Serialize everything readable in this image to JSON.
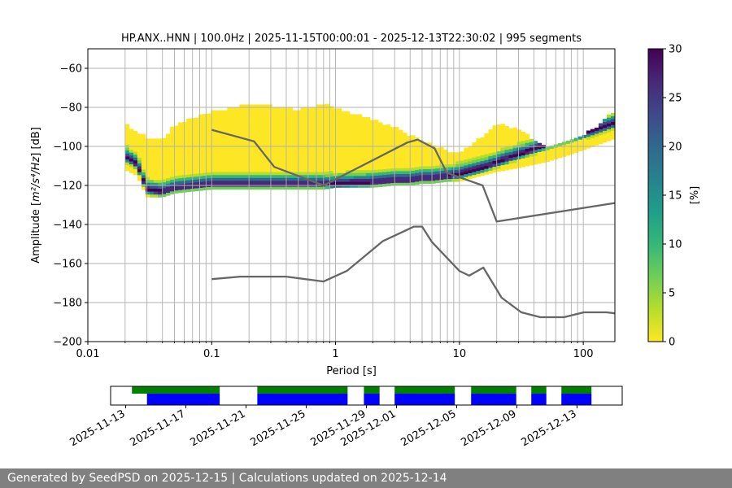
{
  "chart_data": {
    "type": "heatmap",
    "title": "HP.ANX..HNN | 100.0Hz | 2025-11-15T00:00:01 - 2025-12-13T22:30:02 | 995 segments",
    "xlabel": "Period [s]",
    "ylabel_main": "Amplitude [",
    "ylabel_units": "m²/s⁴/Hz",
    "ylabel_tail": "] [dB]",
    "x_scale": "log",
    "xlim": [
      0.01,
      180
    ],
    "ylim": [
      -200,
      -50
    ],
    "x_ticks": [
      {
        "value": 0.01,
        "label": "0.01"
      },
      {
        "value": 0.1,
        "label": "0.1"
      },
      {
        "value": 1,
        "label": "1"
      },
      {
        "value": 10,
        "label": "10"
      },
      {
        "value": 100,
        "label": "100"
      }
    ],
    "y_ticks": [
      {
        "value": -60,
        "label": "−60"
      },
      {
        "value": -80,
        "label": "−80"
      },
      {
        "value": -100,
        "label": "−100"
      },
      {
        "value": -120,
        "label": "−120"
      },
      {
        "value": -140,
        "label": "−140"
      },
      {
        "value": -160,
        "label": "−160"
      },
      {
        "value": -180,
        "label": "−180"
      },
      {
        "value": -200,
        "label": "−200"
      }
    ],
    "grid": true,
    "period_gridlines": [
      0.02,
      0.03,
      0.04,
      0.05,
      0.06,
      0.07,
      0.08,
      0.09,
      0.1,
      0.2,
      0.3,
      0.4,
      0.5,
      0.6,
      0.7,
      0.8,
      0.9,
      1,
      2,
      3,
      4,
      5,
      6,
      7,
      8,
      9,
      10,
      20,
      30,
      40,
      50,
      60,
      70,
      80,
      90,
      100
    ],
    "colorbar": {
      "label": "[%]",
      "range": [
        0,
        30
      ],
      "ticks": [
        {
          "value": 0,
          "label": "0"
        },
        {
          "value": 5,
          "label": "5"
        },
        {
          "value": 10,
          "label": "10"
        },
        {
          "value": 15,
          "label": "15"
        },
        {
          "value": 20,
          "label": "20"
        },
        {
          "value": 25,
          "label": "25"
        },
        {
          "value": 30,
          "label": "30"
        }
      ],
      "colors": [
        "#fde725",
        "#b5de2b",
        "#6ece58",
        "#35b779",
        "#1f9e89",
        "#26828e",
        "#31688e",
        "#3e4989",
        "#482878",
        "#440154"
      ]
    },
    "psd_mode": {
      "period": [
        0.02,
        0.025,
        0.03,
        0.04,
        0.05,
        0.07,
        0.1,
        0.2,
        0.3,
        0.5,
        0.8,
        1,
        2,
        3,
        4,
        5,
        6,
        8,
        10,
        15,
        20,
        30,
        50,
        80,
        120,
        180
      ],
      "amplitude": [
        -106,
        -110,
        -123,
        -124,
        -122,
        -121,
        -120,
        -120,
        -120,
        -120,
        -120,
        -120,
        -119,
        -118,
        -118,
        -117,
        -117,
        -116,
        -115,
        -112,
        -109,
        -105,
        -100,
        -96,
        -93,
        -89
      ]
    },
    "psd_spread": {
      "period": [
        0.02,
        0.025,
        0.03,
        0.04,
        0.05,
        0.07,
        0.1,
        0.2,
        0.3,
        0.5,
        0.8,
        1,
        2,
        3,
        4,
        5,
        6,
        8,
        10,
        15,
        20,
        30,
        50,
        80,
        120,
        180
      ],
      "upper": [
        -89,
        -93,
        -96,
        -97,
        -90,
        -86,
        -83,
        -79,
        -80,
        -82,
        -79,
        -81,
        -87,
        -91,
        -95,
        -98,
        -100,
        -103,
        -104,
        -96,
        -89,
        -92,
        -101,
        -98,
        -92,
        -82
      ],
      "lower": [
        -112,
        -115,
        -126,
        -126,
        -124,
        -123,
        -122,
        -122,
        -122,
        -122,
        -122,
        -121,
        -121,
        -120,
        -120,
        -119,
        -119,
        -118,
        -118,
        -115,
        -113,
        -111,
        -108,
        -104,
        -100,
        -96
      ]
    },
    "nhnm": {
      "name": "",
      "period": [
        0.1,
        0.22,
        0.32,
        0.8,
        3.8,
        4.6,
        6.3,
        7.9,
        15.4,
        20,
        180
      ],
      "amplitude": [
        -91.5,
        -97.4,
        -110.5,
        -120,
        -98,
        -96.5,
        -101,
        -113.5,
        -120,
        -138.5,
        -129
      ]
    },
    "nlnm": {
      "name": "",
      "period": [
        0.1,
        0.17,
        0.4,
        0.8,
        1.24,
        2.4,
        4.3,
        5,
        6,
        10,
        12,
        15.6,
        21.9,
        31.6,
        45,
        70,
        101,
        154,
        180
      ],
      "amplitude": [
        -168,
        -166.7,
        -166.7,
        -169.2,
        -163.7,
        -148.6,
        -141.1,
        -141.1,
        -149,
        -163.8,
        -166.2,
        -162.1,
        -177.5,
        -185,
        -187.5,
        -187.5,
        -185,
        -185,
        -185.5
      ]
    },
    "availability": {
      "date_range": [
        "2025-11-12",
        "2025-12-16"
      ],
      "date_ticks": [
        "2025-11-13",
        "2025-11-17",
        "2025-11-21",
        "2025-11-25",
        "2025-11-29",
        "2025-12-01",
        "2025-12-05",
        "2025-12-09",
        "2025-12-13"
      ],
      "green_segments": [
        [
          "2025-11-13T10:00",
          "2025-11-19T06:00"
        ],
        [
          "2025-11-21T18:00",
          "2025-11-27T18:00"
        ],
        [
          "2025-11-28T20:00",
          "2025-11-29T21:00"
        ],
        [
          "2025-11-30T21:00",
          "2025-12-04T21:00"
        ],
        [
          "2025-12-05T23:00",
          "2025-12-08T23:00"
        ],
        [
          "2025-12-09T23:00",
          "2025-12-10T23:00"
        ],
        [
          "2025-12-11T23:00",
          "2025-12-13T23:00"
        ]
      ],
      "blue_segments": [
        [
          "2025-11-14T10:00",
          "2025-11-19T06:00"
        ],
        [
          "2025-11-21T18:00",
          "2025-11-27T18:00"
        ],
        [
          "2025-11-28T20:00",
          "2025-11-29T21:00"
        ],
        [
          "2025-11-30T21:00",
          "2025-12-04T21:00"
        ],
        [
          "2025-12-05T23:00",
          "2025-12-08T23:00"
        ],
        [
          "2025-12-09T23:00",
          "2025-12-10T23:00"
        ],
        [
          "2025-12-11T23:00",
          "2025-12-13T23:00"
        ]
      ],
      "colors": {
        "green": "#008000",
        "blue": "#0000ff"
      }
    }
  },
  "footer": {
    "text": "Generated by SeedPSD on 2025-12-15 | Calculations updated on 2025-12-14"
  }
}
